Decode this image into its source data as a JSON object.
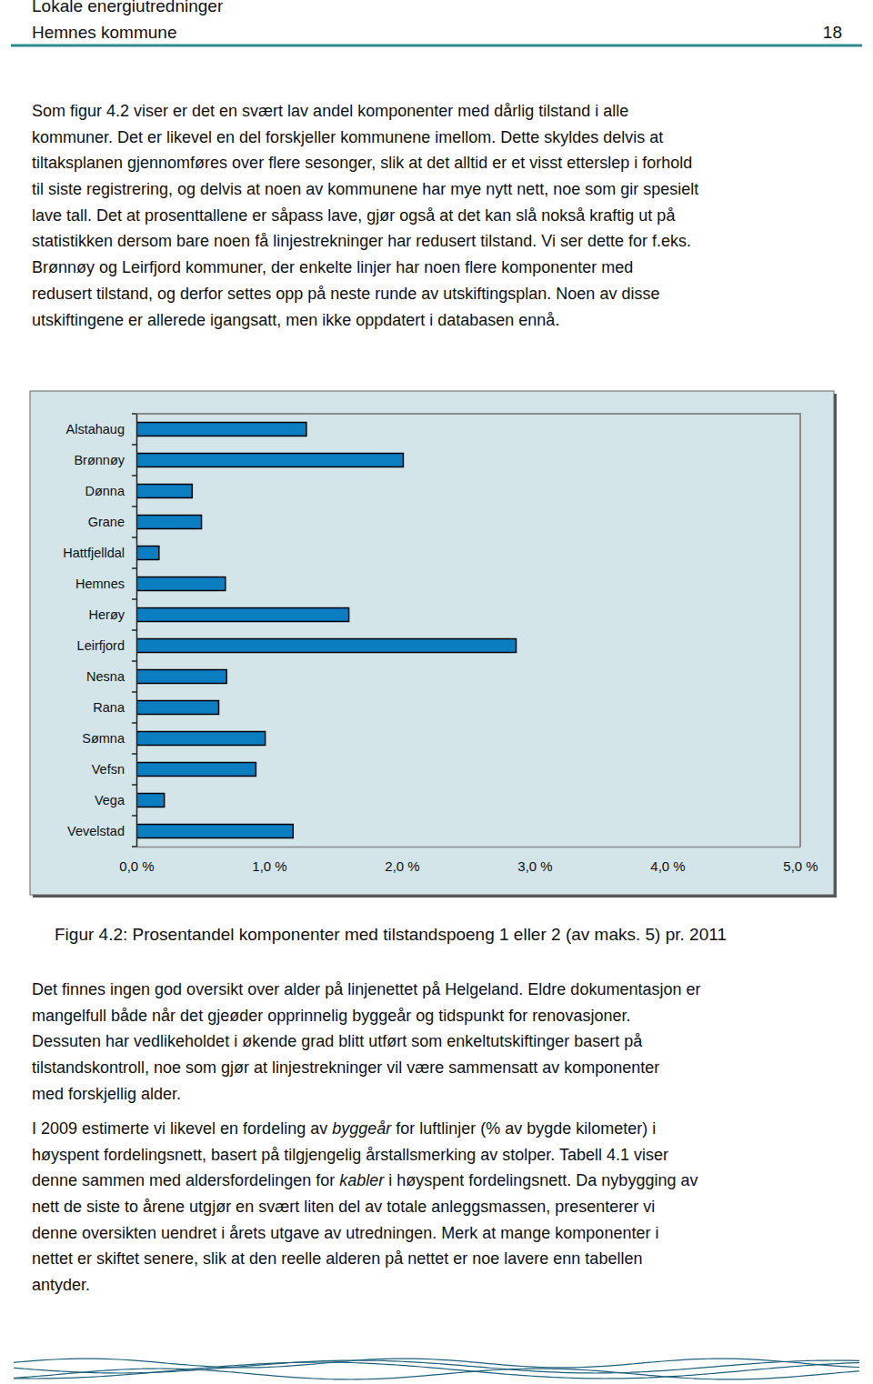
{
  "header": {
    "title": "Lokale energiutredninger",
    "subtitle": "Hemnes kommune",
    "page": 18
  },
  "text_top": [
    [
      "Som figur 4.2 viser er det en svært lav andel komponenter med dårlig tilstand i alle"
    ],
    [
      "kommuner. Det er likevel en del forskjeller kommunene imellom. Dette skyldes delvis at"
    ],
    [
      "tiltaksplanen gjennomføres over flere sesonger, slik at det alltid er et visst etterslep i forhold"
    ],
    [
      "til siste registrering, og delvis at noen av kommunene har mye nytt nett, noe som gir spesielt"
    ],
    [
      "lave tall. Det at prosenttallene er såpass lave, gjør også at det kan slå nokså kraftig ut på"
    ],
    [
      "statistikken dersom bare noen få linjestrekninger har redusert tilstand. Vi ser dette for f.eks."
    ],
    [
      "Brønnøy og Leirfjord kommuner, der enkelte linjer har noen flere komponenter med"
    ],
    [
      "redusert tilstand, og derfor settes opp på neste runde av utskiftingsplan. Noen av disse"
    ],
    [
      "utskiftingene er allerede igangsatt, men ikke oppdatert i databasen ennå."
    ]
  ],
  "chart_data": {
    "type": "bar",
    "orientation": "horizontal",
    "title": "Figur 4.2: Prosentandel komponenter med tilstandspoeng 1 eller 2 (av maks. 5) pr. 2011",
    "categories": [
      "Alstahaug",
      "Brønnøy",
      "Dønna",
      "Grane",
      "Hattfjelldal",
      "Hemnes",
      "Herøy",
      "Leirfjord",
      "Nesna",
      "Rana",
      "Sømna",
      "Vefsn",
      "Vega",
      "Vevelstad"
    ],
    "values": [
      1.28,
      2.01,
      0.42,
      0.49,
      0.17,
      0.67,
      1.6,
      2.86,
      0.68,
      0.62,
      0.97,
      0.9,
      0.21,
      1.18
    ],
    "color": "#0b7dc1",
    "xlim": [
      0,
      5
    ],
    "xticks": [
      {
        "value": 0,
        "label": "0,0 %"
      },
      {
        "value": 1,
        "label": "1,0 %"
      },
      {
        "value": 2,
        "label": "2,0 %"
      },
      {
        "value": 3,
        "label": "3,0 %"
      },
      {
        "value": 4,
        "label": "4,0 %"
      },
      {
        "value": 5,
        "label": "5,0 %"
      }
    ],
    "grid": false
  },
  "text_bottom": [
    [
      [
        "Det finnes ingen god oversikt over alder på linjenettet på Helgeland. Eldre dokumentasjon er"
      ],
      [
        "mangelfull både når det gjeøder opprinnelig byggeår og tidspunkt for renovasjoner."
      ],
      [
        "Dessuten har vedlikeholdet i økende grad blitt utført som enkeltutskiftinger basert på"
      ],
      [
        "tilstandskontroll, noe som gjør at linjestrekninger vil være sammensatt av komponenter"
      ],
      [
        "med forskjellig alder."
      ]
    ],
    [
      [
        "I 2009 estimerte vi likevel en fordeling av ",
        {
          "em": "byggeår"
        },
        " for luftlinjer (% av bygde kilometer) i"
      ],
      [
        "høyspent fordelingsnett, basert på tilgjengelig årstallsmerking av stolper. Tabell 4.1 viser"
      ],
      [
        "denne sammen med aldersfordelingen for ",
        {
          "em": "kabler"
        },
        " i høyspent fordelingsnett. Da nybygging av"
      ],
      [
        "nett de siste to årene utgjør en svært liten del av totale anleggsmassen, presenterer vi"
      ],
      [
        "denne oversikten uendret i årets utgave av utredningen. Merk at mange komponenter i"
      ],
      [
        "nettet er skiftet senere, slik at den reelle alderen på nettet er noe lavere enn tabellen"
      ],
      [
        "antyder."
      ]
    ]
  ]
}
